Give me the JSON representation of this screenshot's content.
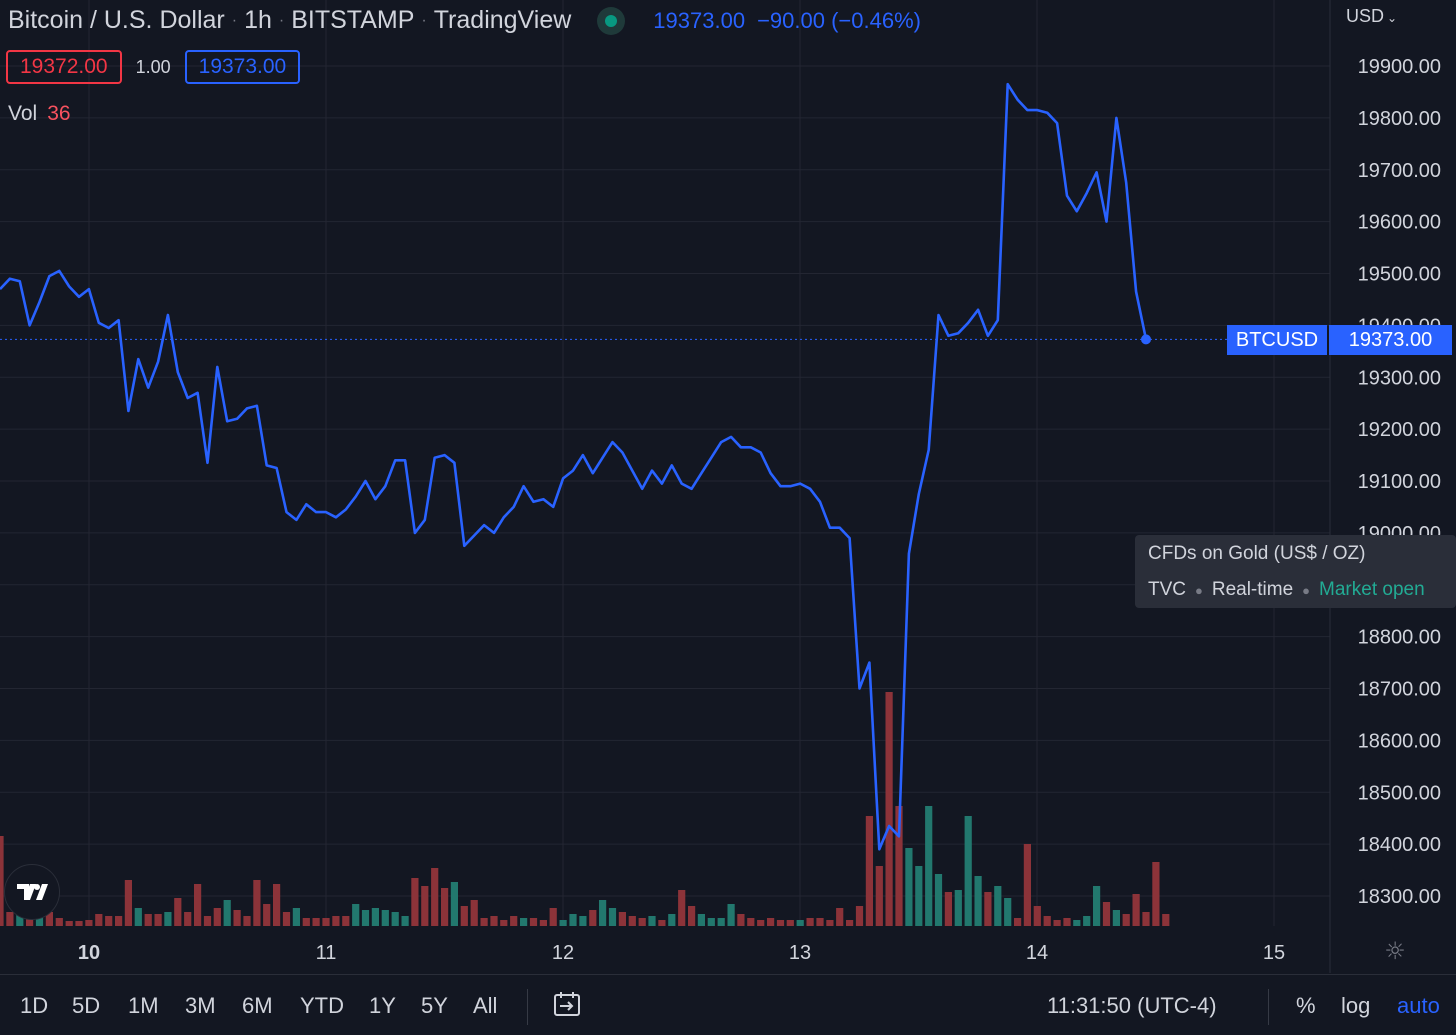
{
  "header": {
    "title": "Bitcoin / U.S. Dollar",
    "interval": "1h",
    "exchange": "BITSTAMP",
    "source": "TradingView",
    "last_price": "19373.00",
    "change": "−90.00 (−0.46%)"
  },
  "quote": {
    "bid": "19372.00",
    "spread": "1.00",
    "ask": "19373.00"
  },
  "volume": {
    "label": "Vol",
    "value": "36"
  },
  "currency": "USD",
  "price_tag": {
    "symbol": "BTCUSD",
    "price": "19373.00"
  },
  "tooltip": {
    "name": "CFDs on Gold (US$ / OZ)",
    "source": "TVC",
    "mode": "Real-time",
    "status": "Market open"
  },
  "logo_text": "TV",
  "bottom": {
    "ranges": [
      "1D",
      "5D",
      "1M",
      "3M",
      "6M",
      "YTD",
      "1Y",
      "5Y",
      "All"
    ],
    "time": "11:31:50 (UTC-4)",
    "percent": "%",
    "log": "log",
    "auto": "auto"
  },
  "colors": {
    "background": "#131722",
    "line": "#2962ff",
    "up": "#22786e",
    "down": "#8c3339",
    "grid": "#232632"
  },
  "chart_data": {
    "type": "line",
    "x_ticks": [
      "10",
      "11",
      "12",
      "13",
      "14",
      "15"
    ],
    "y_ticks": [
      "19900.00",
      "19800.00",
      "19700.00",
      "19600.00",
      "19500.00",
      "19400.00",
      "19300.00",
      "19200.00",
      "19100.00",
      "19000.00",
      "18800.00",
      "18700.00",
      "18600.00",
      "18500.00",
      "18400.00",
      "18300.00"
    ],
    "ylim": [
      18240,
      19970
    ],
    "xlim": [
      9.62,
      15.5
    ],
    "last_value": 19373,
    "series": [
      {
        "values": [
          19470,
          19490,
          19485,
          19400,
          19445,
          19495,
          19505,
          19475,
          19455,
          19470,
          19405,
          19395,
          19410,
          19235,
          19335,
          19280,
          19330,
          19420,
          19310,
          19260,
          19270,
          19135,
          19320,
          19215,
          19220,
          19240,
          19245,
          19130,
          19125,
          19040,
          19025,
          19055,
          19040,
          19040,
          19030,
          19045,
          19070,
          19100,
          19065,
          19090,
          19140,
          19140,
          19000,
          19025,
          19145,
          19150,
          19135,
          18975,
          18995,
          19015,
          19000,
          19030,
          19050,
          19090,
          19060,
          19065,
          19050,
          19105,
          19120,
          19150,
          19115,
          19145,
          19175,
          19155,
          19120,
          19085,
          19120,
          19095,
          19130,
          19095,
          19085,
          19115,
          19145,
          19175,
          19185,
          19165,
          19165,
          19155,
          19115,
          19090,
          19090,
          19095,
          19085,
          19060,
          19010,
          19010,
          18990,
          18700,
          18750,
          18390,
          18435,
          18415,
          18960,
          19075,
          19160,
          19420,
          19380,
          19385,
          19405,
          19430,
          19380,
          19410,
          19865,
          19835,
          19815,
          19815,
          19810,
          19790,
          19650,
          19620,
          19655,
          19695,
          19600,
          19800,
          19675,
          19465,
          19373
        ],
        "volume": [
          17,
          2,
          3,
          2,
          3,
          2,
          2,
          2,
          2,
          3,
          2,
          3,
          2,
          9,
          5,
          3,
          3,
          3,
          3,
          5,
          2,
          2,
          8,
          3,
          3,
          3,
          6,
          3,
          3,
          9,
          5,
          2,
          8,
          3,
          5,
          2,
          2,
          2,
          2,
          3,
          2,
          2,
          4,
          2,
          3,
          2,
          2,
          3,
          3,
          2,
          3,
          3,
          2,
          2,
          3,
          2,
          2,
          3,
          2,
          2,
          2,
          2,
          3,
          2,
          2,
          3,
          2,
          2,
          2,
          3,
          2,
          2,
          2,
          3,
          2,
          2,
          2,
          2,
          2,
          2,
          2,
          2,
          2,
          2,
          2,
          2,
          2,
          2,
          2,
          2,
          2,
          2,
          2,
          2,
          2,
          2,
          2,
          2,
          2,
          2,
          2,
          2,
          2,
          2,
          2,
          2,
          2,
          2,
          2,
          2,
          2,
          2,
          2,
          2,
          2,
          2,
          36
        ],
        "volume_up": [
          false,
          false,
          true,
          false,
          true,
          false,
          false,
          false,
          false,
          false,
          false,
          false,
          false,
          false,
          true,
          false,
          false,
          true,
          false,
          false,
          false,
          false,
          false,
          true,
          false,
          false,
          false,
          false,
          false,
          false,
          true,
          false,
          false,
          false,
          false,
          false,
          true,
          true,
          true,
          true,
          true,
          true,
          false,
          false,
          false,
          false,
          true,
          false,
          false,
          false,
          false,
          false,
          false,
          true,
          false,
          false,
          false,
          true,
          true,
          true,
          false,
          true,
          true,
          false,
          false,
          false,
          true,
          false,
          true,
          false,
          false,
          true,
          true,
          true,
          true,
          false,
          false,
          false,
          false,
          false,
          false,
          true,
          false,
          false,
          false,
          false,
          false,
          false,
          false,
          false,
          false,
          false,
          true,
          true,
          true,
          true,
          false,
          true,
          true,
          true,
          false,
          true,
          true,
          false,
          false,
          false,
          false,
          false,
          false,
          true,
          true,
          true,
          false,
          true,
          false,
          false,
          false
        ],
        "volume_heights": [
          90,
          14,
          12,
          14,
          13,
          14,
          8,
          5,
          5,
          6,
          12,
          10,
          10,
          46,
          18,
          12,
          12,
          14,
          28,
          14,
          42,
          10,
          18,
          26,
          16,
          10,
          46,
          22,
          42,
          14,
          18,
          8,
          8,
          8,
          10,
          10,
          22,
          16,
          18,
          16,
          14,
          10,
          48,
          40,
          58,
          38,
          44,
          20,
          26,
          8,
          10,
          6,
          10,
          8,
          8,
          6,
          18,
          6,
          12,
          10,
          16,
          26,
          18,
          14,
          10,
          8,
          10,
          6,
          12,
          36,
          20,
          12,
          8,
          8,
          22,
          12,
          8,
          6,
          8,
          6,
          6,
          6,
          8,
          8,
          6,
          18,
          6,
          20,
          110,
          60,
          234,
          120,
          78,
          60,
          120,
          52,
          34,
          36,
          110,
          50,
          34,
          40,
          28,
          8,
          82,
          20,
          10,
          6,
          8,
          6,
          10,
          40,
          24,
          16,
          12,
          32,
          14,
          64,
          12
        ]
      }
    ]
  }
}
